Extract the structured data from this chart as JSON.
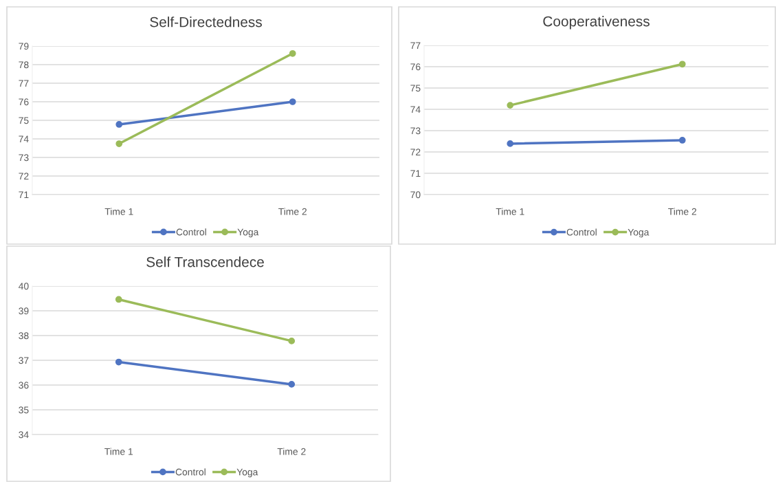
{
  "chart_data": [
    {
      "type": "line",
      "title": "Self-Directedness",
      "categories": [
        "Time 1",
        "Time 2"
      ],
      "series": [
        {
          "name": "Control",
          "color": "#4f74c2",
          "values": [
            74.78,
            76.0
          ]
        },
        {
          "name": "Yoga",
          "color": "#9bbb59",
          "values": [
            73.74,
            78.6
          ]
        }
      ],
      "ylim": [
        71,
        79
      ],
      "yticks": [
        71,
        72,
        73,
        74,
        75,
        76,
        77,
        78,
        79
      ],
      "grid": "y",
      "legend": "bottom",
      "marker": "circle",
      "line_style": "solid"
    },
    {
      "type": "line",
      "title": "Cooperativeness",
      "categories": [
        "Time 1",
        "Time 2"
      ],
      "series": [
        {
          "name": "Control",
          "color": "#4f74c2",
          "values": [
            72.39,
            72.55
          ]
        },
        {
          "name": "Yoga",
          "color": "#9bbb59",
          "values": [
            74.19,
            76.12
          ]
        }
      ],
      "ylim": [
        70,
        77
      ],
      "yticks": [
        70,
        71,
        72,
        73,
        74,
        75,
        76,
        77
      ],
      "grid": "y",
      "legend": "bottom",
      "marker": "circle",
      "line_style": "solid"
    },
    {
      "type": "line",
      "title": "Self Transcendece",
      "categories": [
        "Time 1",
        "Time 2"
      ],
      "series": [
        {
          "name": "Control",
          "color": "#4f74c2",
          "values": [
            36.93,
            36.03
          ]
        },
        {
          "name": "Yoga",
          "color": "#9bbb59",
          "values": [
            39.46,
            37.78
          ]
        }
      ],
      "ylim": [
        34,
        40
      ],
      "yticks": [
        34,
        35,
        36,
        37,
        38,
        39,
        40
      ],
      "grid": "y",
      "legend": "bottom",
      "marker": "circle",
      "line_style": "solid"
    }
  ]
}
